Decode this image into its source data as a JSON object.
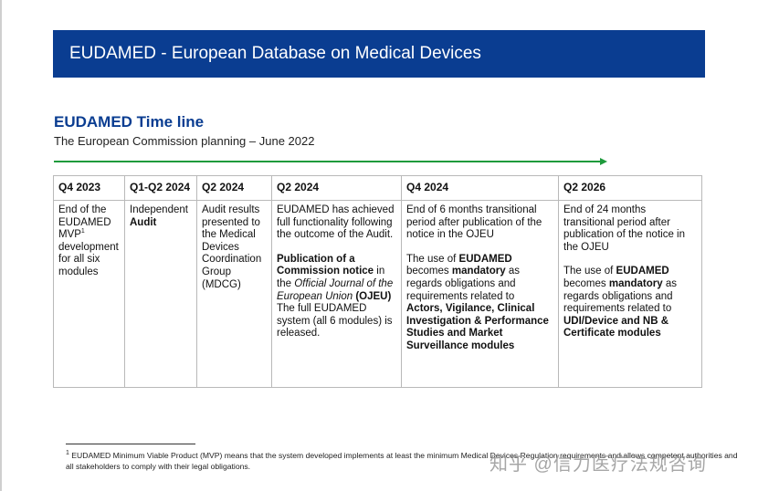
{
  "header": {
    "title": "EUDAMED - European Database on Medical Devices"
  },
  "section": {
    "title": "EUDAMED Time line",
    "subtitle": "The European Commission planning – June 2022"
  },
  "colors": {
    "banner": "#0a3d91",
    "title": "#0a3d91",
    "arrow": "#1e9a3c"
  },
  "columns": [
    "Q4 2023",
    "Q1-Q2 2024",
    "Q2 2024",
    "Q2 2024",
    "Q4 2024",
    "Q2 2026"
  ],
  "cells": {
    "c1": {
      "t1": "End of the EUDAMED MVP",
      "sup": "1",
      "t2": " development for all six modules"
    },
    "c2": {
      "t1": "Independent ",
      "b1": "Audit"
    },
    "c3": {
      "t1": "Audit results presented to the Medical Devices Coordination Group (MDCG)"
    },
    "c4": {
      "p1": "EUDAMED has achieved full functionality following the outcome of the Audit.",
      "b1": "Publication of a Commission notice",
      "t1": " in the ",
      "i1": "Official Journal of the European Union",
      "t2": " ",
      "b2": "(OJEU)",
      "t3": " The full EUDAMED system (all 6 modules) is released."
    },
    "c5": {
      "p1": "End of 6 months transitional period after publication of the notice in the OJEU",
      "t1": "The use of ",
      "b1": "EUDAMED",
      "t2": " becomes ",
      "b2": "mandatory",
      "t3": " as regards obligations and requirements related to ",
      "b3": "Actors, Vigilance, Clinical Investigation & Performance Studies and Market Surveillance modules"
    },
    "c6": {
      "p1": "End of 24 months transitional period after publication of the notice in the OJEU",
      "t1": "The use of ",
      "b1": "EUDAMED",
      "t2": " becomes ",
      "b2": "mandatory",
      "t3": " as regards obligations and requirements related to ",
      "b3": "UDI/Device and NB & Certificate modules"
    }
  },
  "footnote": {
    "mark": "1",
    "text": " EUDAMED Minimum Viable Product (MVP) means that the system developed implements at least the minimum Medical Devices Regulation requirements and allows competent authorities and all stakeholders to comply with their legal obligations."
  },
  "watermark": {
    "text": "知乎 @信力医疗法规咨询"
  }
}
